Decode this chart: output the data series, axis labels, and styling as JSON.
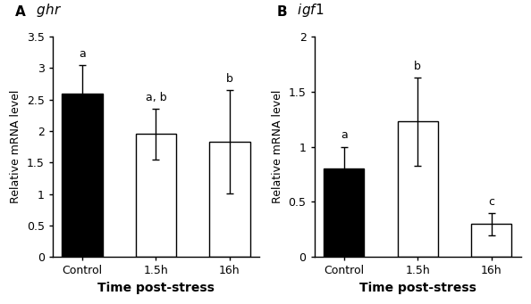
{
  "panel_A": {
    "title_letter": "A",
    "title_gene": " $\\mathit{ghr}$",
    "categories": [
      "Control",
      "1.5h",
      "16h"
    ],
    "values": [
      2.6,
      1.95,
      1.83
    ],
    "errors": [
      0.45,
      0.4,
      0.82
    ],
    "colors": [
      "#000000",
      "#ffffff",
      "#ffffff"
    ],
    "edge_colors": [
      "#000000",
      "#000000",
      "#000000"
    ],
    "labels": [
      "a",
      "a, b",
      "b"
    ],
    "ylabel": "Relative mRNA level",
    "xlabel": "Time post-stress",
    "ylim": [
      0,
      3.5
    ],
    "yticks": [
      0,
      0.5,
      1.0,
      1.5,
      2.0,
      2.5,
      3.0,
      3.5
    ],
    "yticklabels": [
      "0",
      "0.5",
      "1",
      "1.5",
      "2",
      "2.5",
      "3",
      "3.5"
    ]
  },
  "panel_B": {
    "title_letter": "B",
    "title_gene": " $\\mathit{igf1}$",
    "categories": [
      "Control",
      "1.5h",
      "16h"
    ],
    "values": [
      0.8,
      1.23,
      0.3
    ],
    "errors": [
      0.2,
      0.4,
      0.1
    ],
    "colors": [
      "#000000",
      "#ffffff",
      "#ffffff"
    ],
    "edge_colors": [
      "#000000",
      "#000000",
      "#000000"
    ],
    "labels": [
      "a",
      "b",
      "c"
    ],
    "ylabel": "Relative mRNA level",
    "xlabel": "Time post-stress",
    "ylim": [
      0,
      2.0
    ],
    "yticks": [
      0,
      0.5,
      1.0,
      1.5,
      2.0
    ],
    "yticklabels": [
      "0",
      "0.5",
      "1",
      "1.5",
      "2"
    ]
  }
}
